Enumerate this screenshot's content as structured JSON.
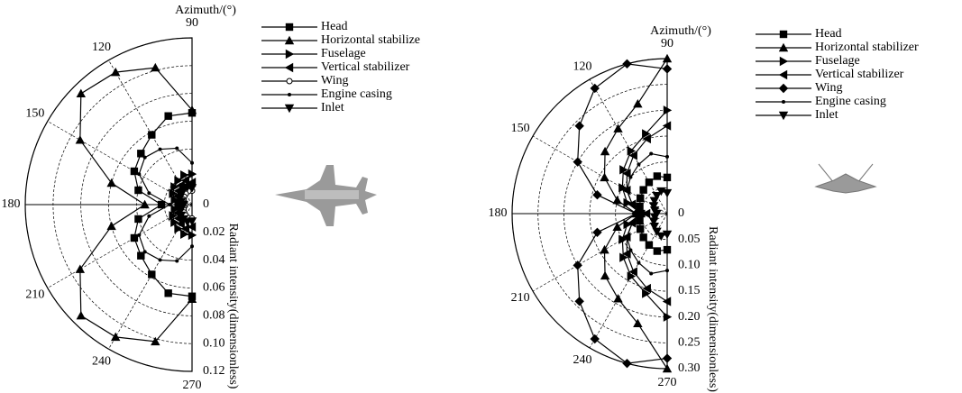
{
  "chart_data": [
    {
      "type": "polar",
      "theta_label": "Azimuth/(°)",
      "r_label": "Radiant intensity(dimensionless)",
      "thetalim": [
        90,
        270
      ],
      "thetaticks": [
        90,
        120,
        150,
        180,
        210,
        240,
        270
      ],
      "rlim": [
        0,
        0.12
      ],
      "rticks": [
        0,
        0.02,
        0.04,
        0.06,
        0.08,
        {
          "value": 0.1,
          "label": "0.10"
        },
        0.12
      ],
      "grid": true,
      "theta": [
        90,
        105,
        120,
        135,
        150,
        165,
        180,
        195,
        210,
        225,
        240,
        255,
        270
      ],
      "series": [
        {
          "name": "Head",
          "color": "#000000",
          "marker": "square",
          "values": [
            0.066,
            0.066,
            0.058,
            0.052,
            0.048,
            0.04,
            0.022,
            0.04,
            0.048,
            0.052,
            0.058,
            0.066,
            0.066
          ]
        },
        {
          "name": "Horizontal stabilize",
          "color": "#000000",
          "marker": "triangle-up",
          "values": [
            0.068,
            0.102,
            0.11,
            0.113,
            0.093,
            0.06,
            0.034,
            0.06,
            0.093,
            0.113,
            0.11,
            0.102,
            0.068
          ]
        },
        {
          "name": "Fuselage",
          "color": "#000000",
          "marker": "triangle-right",
          "values": [
            0.022,
            0.022,
            0.02,
            0.018,
            0.016,
            0.013,
            0.01,
            0.013,
            0.016,
            0.018,
            0.02,
            0.022,
            0.022
          ]
        },
        {
          "name": "Vertical stabilizer",
          "color": "#000000",
          "marker": "triangle-left",
          "values": [
            0.016,
            0.018,
            0.016,
            0.014,
            0.012,
            0.01,
            0.008,
            0.01,
            0.012,
            0.014,
            0.016,
            0.018,
            0.016
          ]
        },
        {
          "name": "Wing",
          "color": "#000000",
          "marker": "circle-open",
          "values": [
            0.01,
            0.01,
            0.009,
            0.008,
            0.007,
            0.006,
            0.005,
            0.006,
            0.007,
            0.008,
            0.009,
            0.01,
            0.01
          ]
        },
        {
          "name": "Engine casing",
          "color": "#000000",
          "marker": "dot",
          "values": [
            0.03,
            0.042,
            0.046,
            0.048,
            0.044,
            0.032,
            0.016,
            0.032,
            0.044,
            0.048,
            0.046,
            0.042,
            0.03
          ]
        },
        {
          "name": "Inlet",
          "color": "#000000",
          "marker": "triangle-down",
          "values": [
            0.012,
            0.013,
            0.012,
            0.011,
            0.01,
            0.008,
            0.006,
            0.008,
            0.01,
            0.011,
            0.012,
            0.013,
            0.012
          ]
        }
      ]
    },
    {
      "type": "polar",
      "theta_label": "Azimuth/(°)",
      "r_label": "Radiant intensity(dimensionless)",
      "thetalim": [
        90,
        270
      ],
      "thetaticks": [
        90,
        120,
        150,
        180,
        210,
        240,
        270
      ],
      "rlim": [
        0,
        0.3
      ],
      "rticks": [
        0,
        0.05,
        {
          "value": 0.1,
          "label": "0.10"
        },
        0.15,
        {
          "value": 0.2,
          "label": "0.20"
        },
        0.25,
        {
          "value": 0.3,
          "label": "0.30"
        }
      ],
      "grid": true,
      "theta": [
        90,
        105,
        120,
        135,
        150,
        165,
        180,
        195,
        210,
        225,
        240,
        255,
        270
      ],
      "series": [
        {
          "name": "Head",
          "color": "#000000",
          "marker": "square",
          "values": [
            0.07,
            0.075,
            0.07,
            0.065,
            0.06,
            0.055,
            0.05,
            0.055,
            0.06,
            0.065,
            0.07,
            0.075,
            0.07
          ]
        },
        {
          "name": "Horizontal stabilizer",
          "color": "#000000",
          "marker": "triangle-up",
          "values": [
            0.3,
            0.22,
            0.19,
            0.17,
            0.14,
            0.1,
            0.06,
            0.1,
            0.14,
            0.17,
            0.19,
            0.22,
            0.3
          ]
        },
        {
          "name": "Fuselage",
          "color": "#000000",
          "marker": "triangle-right",
          "values": [
            0.2,
            0.16,
            0.14,
            0.12,
            0.1,
            0.08,
            0.05,
            0.08,
            0.1,
            0.12,
            0.14,
            0.16,
            0.2
          ]
        },
        {
          "name": "Vertical stabilizer",
          "color": "#000000",
          "marker": "triangle-left",
          "values": [
            0.17,
            0.15,
            0.13,
            0.11,
            0.09,
            0.07,
            0.04,
            0.07,
            0.09,
            0.11,
            0.13,
            0.15,
            0.17
          ]
        },
        {
          "name": "Wing",
          "color": "#000000",
          "marker": "diamond",
          "values": [
            0.28,
            0.3,
            0.28,
            0.24,
            0.2,
            0.14,
            0.06,
            0.14,
            0.2,
            0.24,
            0.28,
            0.3,
            0.28
          ]
        },
        {
          "name": "Engine casing",
          "color": "#000000",
          "marker": "dot",
          "values": [
            0.11,
            0.12,
            0.11,
            0.1,
            0.09,
            0.07,
            0.04,
            0.07,
            0.09,
            0.1,
            0.11,
            0.12,
            0.11
          ]
        },
        {
          "name": "Inlet",
          "color": "#000000",
          "marker": "triangle-down",
          "values": [
            0.04,
            0.045,
            0.04,
            0.035,
            0.03,
            0.025,
            0.02,
            0.025,
            0.03,
            0.035,
            0.04,
            0.045,
            0.04
          ]
        }
      ]
    }
  ]
}
